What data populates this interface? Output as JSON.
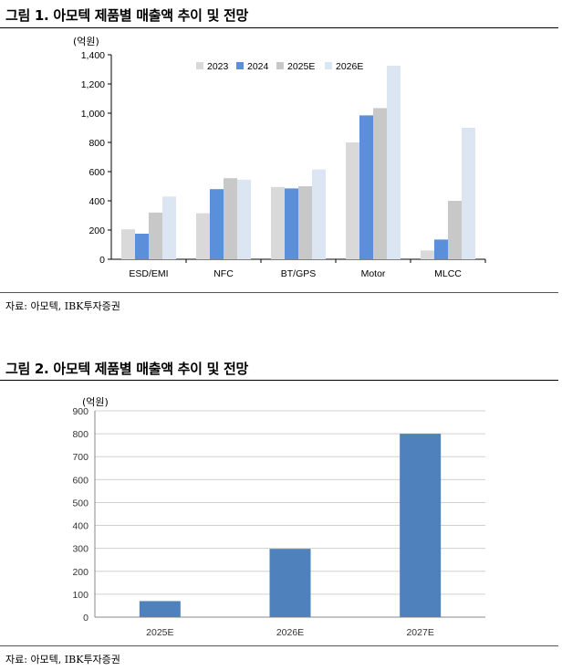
{
  "figure1": {
    "title": "그림 1. 아모텍 제품별 매출액 추이 및 전망",
    "source": "자료: 아모텍, IBK투자증권"
  },
  "figure2": {
    "title": "그림 2. 아모텍 제품별 매출액 추이 및 전망",
    "source": "자료: 아모텍, IBK투자증권"
  },
  "chart_data": [
    {
      "type": "bar",
      "unit_label": "(억원)",
      "categories": [
        "ESD/EMI",
        "NFC",
        "BT/GPS",
        "Motor",
        "MLCC"
      ],
      "series": [
        {
          "name": "2023",
          "color": "#d9d9d9",
          "values": [
            205,
            315,
            495,
            800,
            60
          ]
        },
        {
          "name": "2024",
          "color": "#5b8fd9",
          "values": [
            175,
            480,
            485,
            985,
            135
          ]
        },
        {
          "name": "2025E",
          "color": "#c8c8c8",
          "values": [
            320,
            555,
            500,
            1035,
            400
          ]
        },
        {
          "name": "2026E",
          "color": "#dce6f2",
          "values": [
            430,
            545,
            615,
            1325,
            900
          ]
        }
      ],
      "ylim": [
        0,
        1400
      ],
      "yticks": [
        "0",
        "200",
        "400",
        "600",
        "800",
        "1,000",
        "1,200",
        "1,400"
      ],
      "legend_position": "top-right",
      "grid": false
    },
    {
      "type": "bar",
      "unit_label": "(억원)",
      "categories": [
        "2025E",
        "2026E",
        "2027E"
      ],
      "series": [
        {
          "color": "#4f81bd",
          "values": [
            70,
            298,
            800
          ]
        }
      ],
      "ylim": [
        0,
        900
      ],
      "yticks": [
        "0",
        "100",
        "200",
        "300",
        "400",
        "500",
        "600",
        "700",
        "800",
        "900"
      ],
      "grid": true
    }
  ]
}
